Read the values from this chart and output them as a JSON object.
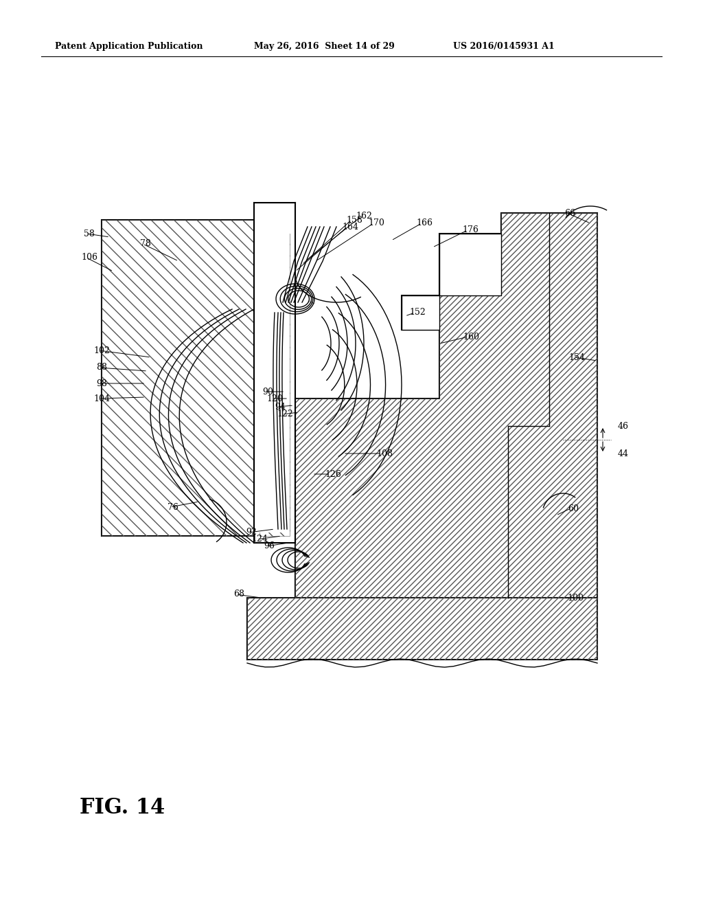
{
  "header_left": "Patent Application Publication",
  "header_mid": "May 26, 2016  Sheet 14 of 29",
  "header_right": "US 2016/0145931 A1",
  "fig_label": "FIG. 14",
  "background": "#ffffff",
  "black": "#000000"
}
